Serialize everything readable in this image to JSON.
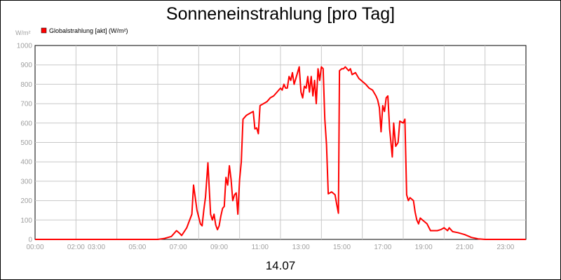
{
  "chart_data": {
    "type": "line",
    "title": "Sonneneinstrahlung [pro Tag]",
    "ylabel": "W/m²",
    "date_label": "14.07",
    "ylim": [
      0,
      1000
    ],
    "xlim": [
      "00:00",
      "24:00"
    ],
    "grid": true,
    "legend_position": "top-left",
    "y_ticks": [
      0,
      100,
      200,
      300,
      400,
      500,
      600,
      700,
      800,
      900,
      1000
    ],
    "x_ticks": [
      "00:00",
      "02:00",
      "03:00",
      "05:00",
      "07:00",
      "09:00",
      "11:00",
      "13:00",
      "15:00",
      "17:00",
      "19:00",
      "21:00",
      "23:00"
    ],
    "series": [
      {
        "name": "Globalstrahlung [akt] (W/m²)",
        "color": "#ff0000",
        "points": [
          [
            "00:00",
            0
          ],
          [
            "06:00",
            0
          ],
          [
            "06:20",
            5
          ],
          [
            "06:40",
            15
          ],
          [
            "06:55",
            45
          ],
          [
            "07:05",
            30
          ],
          [
            "07:10",
            20
          ],
          [
            "07:25",
            60
          ],
          [
            "07:40",
            130
          ],
          [
            "07:45",
            280
          ],
          [
            "07:55",
            150
          ],
          [
            "08:05",
            80
          ],
          [
            "08:10",
            70
          ],
          [
            "08:15",
            150
          ],
          [
            "08:20",
            220
          ],
          [
            "08:27",
            395
          ],
          [
            "08:35",
            130
          ],
          [
            "08:40",
            100
          ],
          [
            "08:45",
            130
          ],
          [
            "08:50",
            75
          ],
          [
            "08:55",
            50
          ],
          [
            "09:00",
            70
          ],
          [
            "09:05",
            120
          ],
          [
            "09:10",
            160
          ],
          [
            "09:15",
            170
          ],
          [
            "09:20",
            320
          ],
          [
            "09:25",
            280
          ],
          [
            "09:30",
            380
          ],
          [
            "09:35",
            310
          ],
          [
            "09:40",
            200
          ],
          [
            "09:45",
            230
          ],
          [
            "09:50",
            240
          ],
          [
            "09:55",
            130
          ],
          [
            "10:00",
            310
          ],
          [
            "10:05",
            400
          ],
          [
            "10:10",
            620
          ],
          [
            "10:20",
            640
          ],
          [
            "10:30",
            650
          ],
          [
            "10:40",
            660
          ],
          [
            "10:45",
            570
          ],
          [
            "10:50",
            575
          ],
          [
            "10:55",
            545
          ],
          [
            "11:00",
            690
          ],
          [
            "11:10",
            700
          ],
          [
            "11:20",
            710
          ],
          [
            "11:30",
            730
          ],
          [
            "11:40",
            740
          ],
          [
            "11:50",
            760
          ],
          [
            "12:00",
            780
          ],
          [
            "12:05",
            770
          ],
          [
            "12:10",
            800
          ],
          [
            "12:15",
            780
          ],
          [
            "12:20",
            780
          ],
          [
            "12:25",
            840
          ],
          [
            "12:30",
            820
          ],
          [
            "12:35",
            860
          ],
          [
            "12:40",
            800
          ],
          [
            "12:45",
            830
          ],
          [
            "12:50",
            860
          ],
          [
            "12:55",
            890
          ],
          [
            "13:00",
            760
          ],
          [
            "13:05",
            730
          ],
          [
            "13:10",
            790
          ],
          [
            "13:15",
            780
          ],
          [
            "13:20",
            840
          ],
          [
            "13:25",
            760
          ],
          [
            "13:30",
            840
          ],
          [
            "13:35",
            740
          ],
          [
            "13:40",
            820
          ],
          [
            "13:45",
            700
          ],
          [
            "13:50",
            880
          ],
          [
            "13:55",
            820
          ],
          [
            "14:00",
            890
          ],
          [
            "14:05",
            880
          ],
          [
            "14:10",
            620
          ],
          [
            "14:15",
            490
          ],
          [
            "14:20",
            235
          ],
          [
            "14:30",
            245
          ],
          [
            "14:40",
            230
          ],
          [
            "14:45",
            180
          ],
          [
            "14:50",
            135
          ],
          [
            "14:53",
            870
          ],
          [
            "15:00",
            880
          ],
          [
            "15:05",
            880
          ],
          [
            "15:10",
            890
          ],
          [
            "15:20",
            870
          ],
          [
            "15:25",
            880
          ],
          [
            "15:30",
            850
          ],
          [
            "15:40",
            860
          ],
          [
            "15:50",
            830
          ],
          [
            "16:10",
            800
          ],
          [
            "16:20",
            780
          ],
          [
            "16:30",
            770
          ],
          [
            "16:40",
            740
          ],
          [
            "16:45",
            720
          ],
          [
            "16:50",
            680
          ],
          [
            "16:55",
            555
          ],
          [
            "17:00",
            690
          ],
          [
            "17:05",
            660
          ],
          [
            "17:10",
            730
          ],
          [
            "17:15",
            740
          ],
          [
            "17:20",
            570
          ],
          [
            "17:25",
            480
          ],
          [
            "17:28",
            425
          ],
          [
            "17:32",
            600
          ],
          [
            "17:38",
            480
          ],
          [
            "17:45",
            500
          ],
          [
            "17:50",
            610
          ],
          [
            "18:00",
            600
          ],
          [
            "18:05",
            620
          ],
          [
            "18:10",
            230
          ],
          [
            "18:15",
            200
          ],
          [
            "18:20",
            215
          ],
          [
            "18:30",
            200
          ],
          [
            "18:35",
            140
          ],
          [
            "18:40",
            100
          ],
          [
            "18:45",
            80
          ],
          [
            "18:50",
            110
          ],
          [
            "19:00",
            95
          ],
          [
            "19:10",
            80
          ],
          [
            "19:20",
            45
          ],
          [
            "19:40",
            45
          ],
          [
            "19:50",
            50
          ],
          [
            "20:00",
            60
          ],
          [
            "20:10",
            45
          ],
          [
            "20:15",
            60
          ],
          [
            "20:25",
            40
          ],
          [
            "20:40",
            35
          ],
          [
            "21:00",
            25
          ],
          [
            "21:20",
            10
          ],
          [
            "21:40",
            3
          ],
          [
            "22:00",
            0
          ],
          [
            "24:00",
            0
          ]
        ]
      }
    ]
  }
}
